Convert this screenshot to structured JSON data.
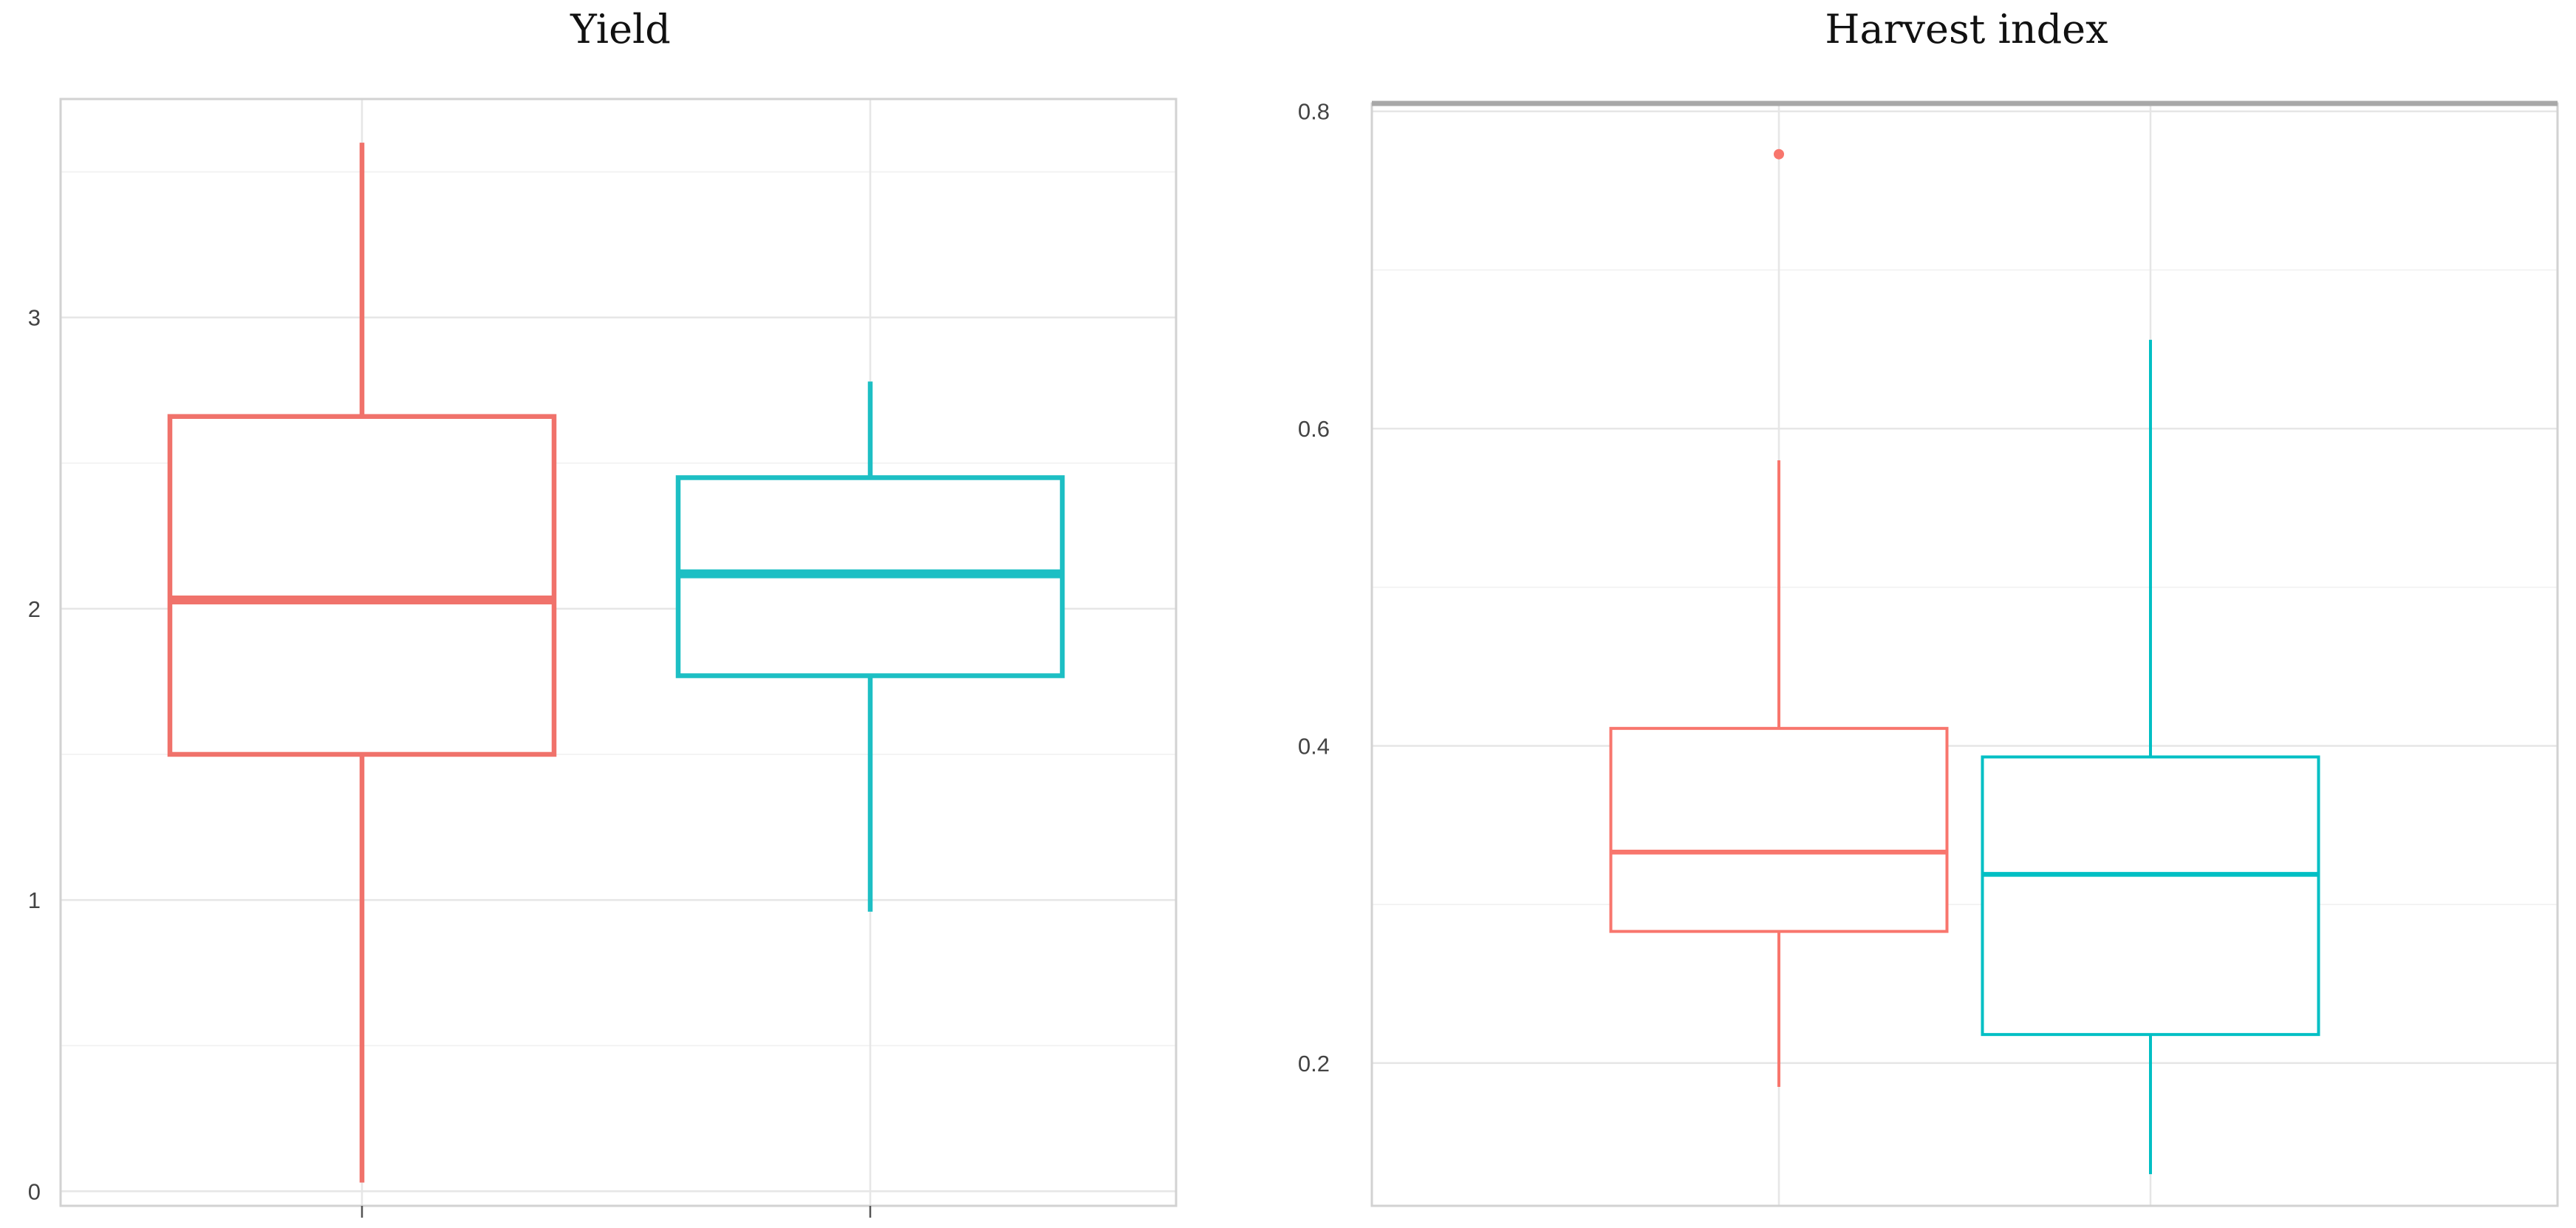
{
  "chart_data": [
    {
      "type": "box",
      "title": "Yield",
      "xlabel": "",
      "ylabel": "",
      "ylim": [
        -0.05,
        3.75
      ],
      "yticks": [
        0,
        1,
        2,
        3
      ],
      "ytick_labels": [
        "0",
        "1",
        "2",
        "3"
      ],
      "grid": true,
      "legend": "none",
      "series": [
        {
          "color": "#f0726b",
          "whisker_low": 0.03,
          "q1": 1.5,
          "median": 2.03,
          "q3": 2.66,
          "whisker_high": 3.6,
          "outliers": []
        },
        {
          "color": "#1dbfc4",
          "whisker_low": 0.96,
          "q1": 1.77,
          "median": 2.12,
          "q3": 2.45,
          "whisker_high": 2.78,
          "outliers": []
        }
      ]
    },
    {
      "type": "box",
      "title": "Harvest index",
      "xlabel": "",
      "ylabel": "",
      "ylim": [
        0.11,
        0.805
      ],
      "yticks": [
        0.2,
        0.4,
        0.6,
        0.8
      ],
      "ytick_labels": [
        "0.2",
        "0.4",
        "0.6",
        "0.8"
      ],
      "grid": true,
      "legend": "none",
      "series": [
        {
          "color": "#f8766d",
          "whisker_low": 0.185,
          "q1": 0.283,
          "median": 0.333,
          "q3": 0.411,
          "whisker_high": 0.58,
          "outliers": [
            0.773
          ]
        },
        {
          "color": "#00bfc4",
          "whisker_low": 0.13,
          "q1": 0.218,
          "median": 0.319,
          "q3": 0.393,
          "whisker_high": 0.656,
          "outliers": []
        }
      ]
    }
  ]
}
